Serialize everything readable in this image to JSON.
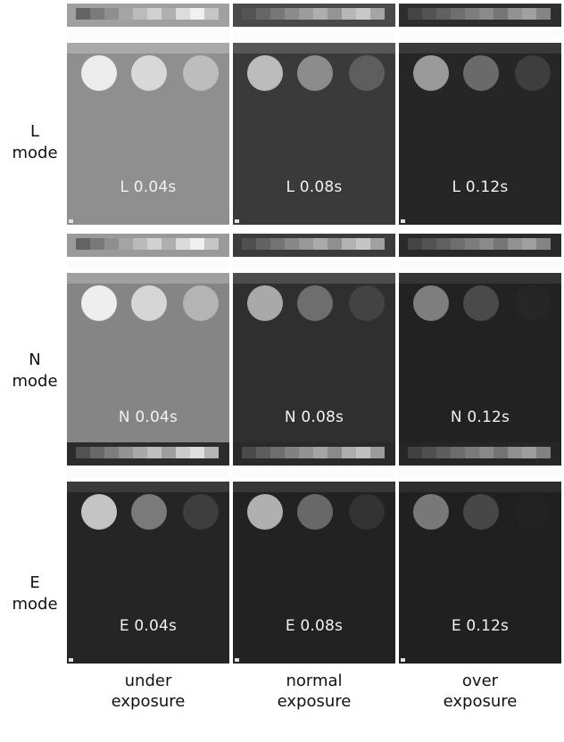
{
  "rows": [
    {
      "mode_letter": "L",
      "mode_word": "mode",
      "cells": [
        {
          "caption": "L 0.04s",
          "panel": "#8f8f8f",
          "band": "#a9a9a9",
          "strip": "#a0a0a0",
          "disks": [
            "#ececec",
            "#d8d8d8",
            "#bdbdbd"
          ]
        },
        {
          "caption": "L 0.08s",
          "panel": "#3a3a3a",
          "band": "#575757",
          "strip": "#4a4a4a",
          "disks": [
            "#bcbcbc",
            "#8c8c8c",
            "#5e5e5e"
          ]
        },
        {
          "caption": "L 0.12s",
          "panel": "#262626",
          "band": "#3a3a3a",
          "strip": "#2e2e2e",
          "disks": [
            "#9a9a9a",
            "#6a6a6a",
            "#3e3e3e"
          ]
        }
      ]
    },
    {
      "mode_letter": "N",
      "mode_word": "mode",
      "cells": [
        {
          "caption": "N 0.04s",
          "panel": "#858585",
          "band": "#a0a0a0",
          "strip": "#9a9a9a",
          "disks": [
            "#eeeeee",
            "#d6d6d6",
            "#b4b4b4"
          ]
        },
        {
          "caption": "N 0.08s",
          "panel": "#2f2f2f",
          "band": "#4c4c4c",
          "strip": "#3c3c3c",
          "disks": [
            "#a9a9a9",
            "#6e6e6e",
            "#434343"
          ]
        },
        {
          "caption": "N 0.12s",
          "panel": "#222222",
          "band": "#353535",
          "strip": "#2a2a2a",
          "disks": [
            "#7e7e7e",
            "#4a4a4a",
            "#262626"
          ]
        }
      ]
    },
    {
      "mode_letter": "E",
      "mode_word": "mode",
      "cells": [
        {
          "caption": "E 0.04s",
          "panel": "#252525",
          "band": "#3a3a3a",
          "strip": "#2c2c2c",
          "disks": [
            "#c4c4c4",
            "#7a7a7a",
            "#3e3e3e"
          ]
        },
        {
          "caption": "E 0.08s",
          "panel": "#222222",
          "band": "#363636",
          "strip": "#2a2a2a",
          "disks": [
            "#b0b0b0",
            "#686868",
            "#333333"
          ]
        },
        {
          "caption": "E 0.12s",
          "panel": "#202020",
          "band": "#2e2e2e",
          "strip": "#262626",
          "disks": [
            "#787878",
            "#474747",
            "#222222"
          ]
        }
      ]
    }
  ],
  "columns": [
    {
      "line1": "under",
      "line2": "exposure"
    },
    {
      "line1": "normal",
      "line2": "exposure"
    },
    {
      "line1": "over",
      "line2": "exposure"
    }
  ],
  "colors": {
    "background": "#ffffff",
    "caption_text": "#f2f2f2",
    "label_text": "#111111"
  }
}
